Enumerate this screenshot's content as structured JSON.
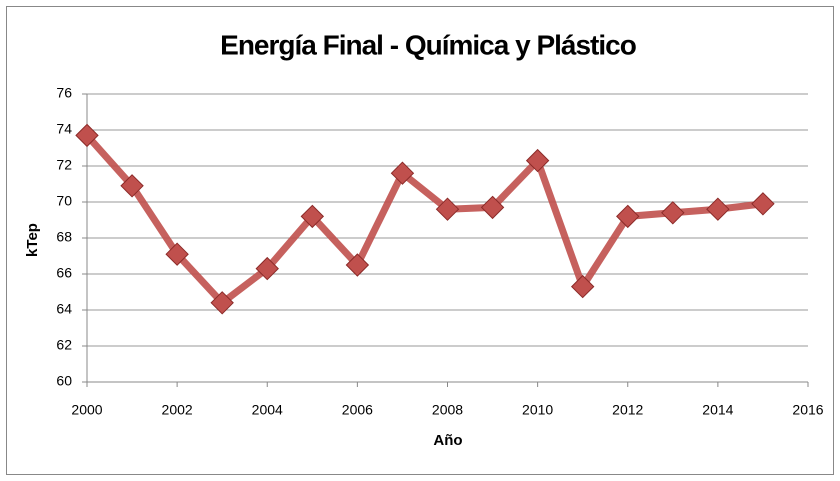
{
  "chart_data": {
    "type": "line",
    "title": "Energía Final  - Química y Plástico",
    "x_label": "Año",
    "y_label": "kTep",
    "x": [
      2000,
      2001,
      2002,
      2003,
      2004,
      2005,
      2006,
      2007,
      2008,
      2009,
      2010,
      2011,
      2012,
      2013,
      2014,
      2015
    ],
    "series": [
      {
        "name": "kTep",
        "color": "#c0504d",
        "values": [
          73.7,
          70.9,
          67.1,
          64.4,
          66.3,
          69.2,
          66.5,
          71.6,
          69.6,
          69.7,
          72.3,
          65.3,
          69.2,
          69.4,
          69.6,
          69.9
        ]
      }
    ],
    "xlim": [
      2000,
      2016
    ],
    "xticks": [
      2000,
      2002,
      2004,
      2006,
      2008,
      2010,
      2012,
      2014,
      2016
    ],
    "ylim": [
      60,
      76
    ],
    "yticks": [
      60,
      62,
      64,
      66,
      68,
      70,
      72,
      74,
      76
    ],
    "grid": true
  }
}
